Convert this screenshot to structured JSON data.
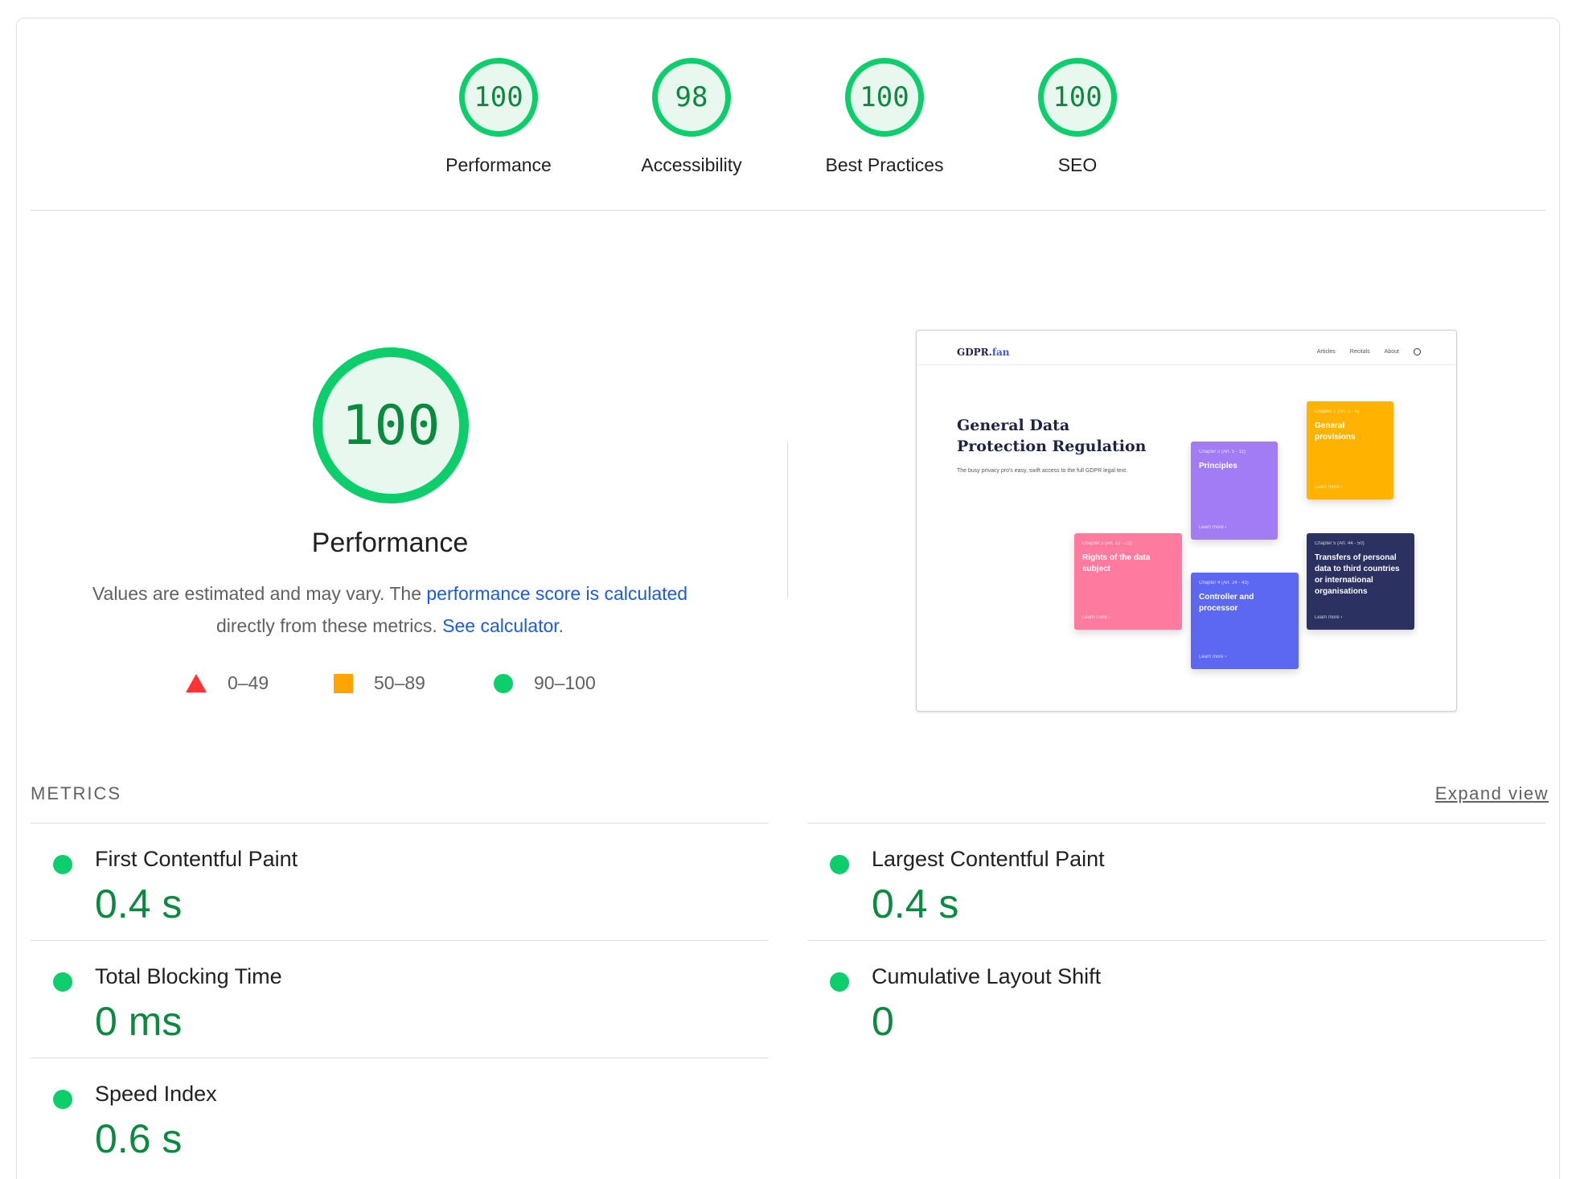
{
  "categories": [
    {
      "score": "100",
      "label": "Performance"
    },
    {
      "score": "98",
      "label": "Accessibility"
    },
    {
      "score": "100",
      "label": "Best Practices"
    },
    {
      "score": "100",
      "label": "SEO"
    }
  ],
  "performance": {
    "score": "100",
    "title": "Performance",
    "desc_prefix": "Values are estimated and may vary. The ",
    "link_score": "performance score is calculated",
    "desc_middle": " directly from these metrics. ",
    "link_calculator": "See calculator",
    "desc_suffix": "."
  },
  "legend": {
    "fail": "0–49",
    "average": "50–89",
    "pass": "90–100"
  },
  "colors": {
    "pass": "#0cce6b",
    "pass_text": "#0a8a3e",
    "average": "#ffa400",
    "fail": "#ff3333",
    "link": "#1a5cdb"
  },
  "screenshot": {
    "brand_main": "GDPR.",
    "brand_accent": "fan",
    "nav": [
      "Articles",
      "Recitals",
      "About"
    ],
    "heading": "General Data Protection Regulation",
    "subtitle": "The busy privacy pro's easy, swift access to the full GDPR legal text.",
    "tiles": [
      {
        "chapter": "Chapter 1 (Art. 1 - 4)",
        "title": "General provisions",
        "more": "Learn more ›",
        "color": "#ffb300"
      },
      {
        "chapter": "Chapter 2 (Art. 5 - 11)",
        "title": "Principles",
        "more": "Learn more ›",
        "color": "#a27cf5"
      },
      {
        "chapter": "Chapter 3 (Art. 12 - 23)",
        "title": "Rights of the data subject",
        "more": "Learn more ›",
        "color": "#ff7a9e"
      },
      {
        "chapter": "Chapter 4 (Art. 24 - 43)",
        "title": "Controller and processor",
        "more": "Learn more ›",
        "color": "#5c67f2"
      },
      {
        "chapter": "Chapter 5 (Art. 44 - 50)",
        "title": "Transfers of personal data to third countries or international organisations",
        "more": "Learn more ›",
        "color": "#2b3262"
      }
    ]
  },
  "metrics": {
    "heading": "METRICS",
    "expand_label": "Expand view",
    "items": [
      {
        "name": "First Contentful Paint",
        "value": "0.4 s"
      },
      {
        "name": "Largest Contentful Paint",
        "value": "0.4 s"
      },
      {
        "name": "Total Blocking Time",
        "value": "0 ms"
      },
      {
        "name": "Cumulative Layout Shift",
        "value": "0"
      },
      {
        "name": "Speed Index",
        "value": "0.6 s"
      }
    ]
  }
}
